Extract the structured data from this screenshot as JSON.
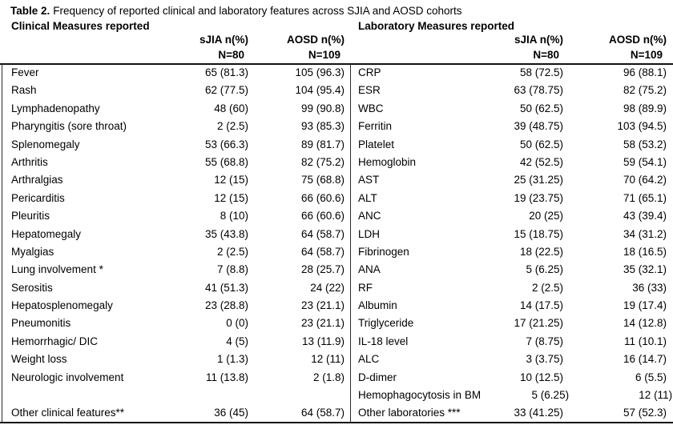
{
  "caption": {
    "label": "Table 2.",
    "text": "Frequency of reported clinical and laboratory features across SJIA and AOSD cohorts"
  },
  "tables": [
    {
      "section_title": "Clinical Measures reported",
      "col_sjia_header": "sJIA n(%)",
      "col_sjia_n": "N=80",
      "col_aosd_header": "AOSD n(%)",
      "col_aosd_n": "N=109",
      "rows": [
        {
          "name": "Fever",
          "sjia": "65 (81.3)",
          "aosd": "105 (96.3)"
        },
        {
          "name": "Rash",
          "sjia": "62 (77.5)",
          "aosd": "104 (95.4)"
        },
        {
          "name": "Lymphadenopathy",
          "sjia": "48 (60)",
          "aosd": "99 (90.8)"
        },
        {
          "name": "Pharyngitis (sore throat)",
          "sjia": "2 (2.5)",
          "aosd": "93 (85.3)"
        },
        {
          "name": "Splenomegaly",
          "sjia": "53 (66.3)",
          "aosd": "89 (81.7)"
        },
        {
          "name": "Arthritis",
          "sjia": "55 (68.8)",
          "aosd": "82 (75.2)"
        },
        {
          "name": "Arthralgias",
          "sjia": "12 (15)",
          "aosd": "75 (68.8)"
        },
        {
          "name": "Pericarditis",
          "sjia": "12 (15)",
          "aosd": "66 (60.6)"
        },
        {
          "name": "Pleuritis",
          "sjia": "8 (10)",
          "aosd": "66 (60.6)"
        },
        {
          "name": "Hepatomegaly",
          "sjia": "35 (43.8)",
          "aosd": "64 (58.7)"
        },
        {
          "name": "Myalgias",
          "sjia": "2 (2.5)",
          "aosd": "64 (58.7)"
        },
        {
          "name": "Lung involvement *",
          "sjia": "7 (8.8)",
          "aosd": "28 (25.7)"
        },
        {
          "name": "Serositis",
          "sjia": "41 (51.3)",
          "aosd": "24 (22)"
        },
        {
          "name": "Hepatosplenomegaly",
          "sjia": "23 (28.8)",
          "aosd": "23 (21.1)"
        },
        {
          "name": "Pneumonitis",
          "sjia": "0 (0)",
          "aosd": "23 (21.1)"
        },
        {
          "name": "Hemorrhagic/ DIC",
          "sjia": "4 (5)",
          "aosd": "13 (11.9)"
        },
        {
          "name": "Weight loss",
          "sjia": "1 (1.3)",
          "aosd": "12 (11)"
        },
        {
          "name": "Neurologic involvement",
          "sjia": "11 (13.8)",
          "aosd": "2 (1.8)"
        },
        {
          "name": "",
          "sjia": "",
          "aosd": ""
        },
        {
          "name": "Other clinical features**",
          "sjia": "36 (45)",
          "aosd": "64 (58.7)"
        }
      ]
    },
    {
      "section_title": "Laboratory Measures reported",
      "col_sjia_header": "sJIA n(%)",
      "col_sjia_n": "N=80",
      "col_aosd_header": "AOSD n(%)",
      "col_aosd_n": "N=109",
      "rows": [
        {
          "name": "CRP",
          "sjia": "58 (72.5)",
          "aosd": "96 (88.1)"
        },
        {
          "name": "ESR",
          "sjia": "63 (78.75)",
          "aosd": "82 (75.2)"
        },
        {
          "name": "WBC",
          "sjia": "50 (62.5)",
          "aosd": "98 (89.9)"
        },
        {
          "name": "Ferritin",
          "sjia": "39 (48.75)",
          "aosd": "103 (94.5)"
        },
        {
          "name": "Platelet",
          "sjia": "50 (62.5)",
          "aosd": "58 (53.2)"
        },
        {
          "name": "Hemoglobin",
          "sjia": "42 (52.5)",
          "aosd": "59 (54.1)"
        },
        {
          "name": "AST",
          "sjia": "25 (31.25)",
          "aosd": "70 (64.2)"
        },
        {
          "name": "ALT",
          "sjia": "19 (23.75)",
          "aosd": "71 (65.1)"
        },
        {
          "name": "ANC",
          "sjia": "20 (25)",
          "aosd": "43 (39.4)"
        },
        {
          "name": "LDH",
          "sjia": "15 (18.75)",
          "aosd": "34 (31.2)"
        },
        {
          "name": "Fibrinogen",
          "sjia": "18 (22.5)",
          "aosd": "18 (16.5)"
        },
        {
          "name": "ANA",
          "sjia": "5 (6.25)",
          "aosd": "35 (32.1)"
        },
        {
          "name": "RF",
          "sjia": "2 (2.5)",
          "aosd": "36 (33)"
        },
        {
          "name": "Albumin",
          "sjia": "14 (17.5)",
          "aosd": "19 (17.4)"
        },
        {
          "name": "Triglyceride",
          "sjia": "17 (21.25)",
          "aosd": "14 (12.8)"
        },
        {
          "name": "IL-18 level",
          "sjia": "7 (8.75)",
          "aosd": "11 (10.1)"
        },
        {
          "name": "ALC",
          "sjia": "3 (3.75)",
          "aosd": "16 (14.7)"
        },
        {
          "name": "D-dimer",
          "sjia": "10 (12.5)",
          "aosd": "6 (5.5)"
        },
        {
          "name": "Hemophagocytosis in BM",
          "sjia": "5 (6.25)",
          "aosd": "12 (11)"
        },
        {
          "name": "Other laboratories ***",
          "sjia": "33 (41.25)",
          "aosd": "57 (52.3)"
        }
      ]
    }
  ]
}
